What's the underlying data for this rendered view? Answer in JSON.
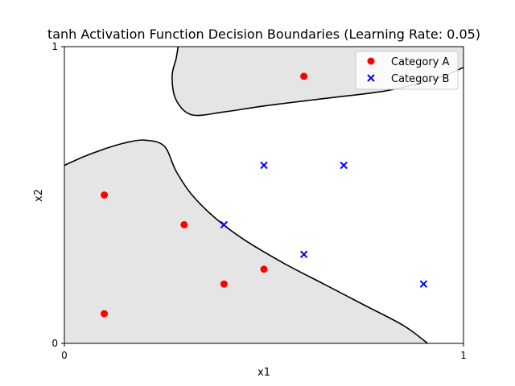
{
  "chart_data": {
    "type": "scatter",
    "title": "tanh Activation Function Decision Boundaries (Learning Rate: 0.05)",
    "xlabel": "x1",
    "ylabel": "x2",
    "xlim": [
      0,
      1
    ],
    "ylim": [
      0,
      1
    ],
    "xticks": [
      "0",
      "1"
    ],
    "yticks": [
      "0",
      "1"
    ],
    "legend_position": "top-right",
    "grid": false,
    "series": [
      {
        "name": "Category A",
        "marker": "circle",
        "color": "#ff0000",
        "points": [
          [
            0.1,
            0.1
          ],
          [
            0.1,
            0.5
          ],
          [
            0.3,
            0.4
          ],
          [
            0.4,
            0.2
          ],
          [
            0.5,
            0.25
          ],
          [
            0.6,
            0.9
          ]
        ]
      },
      {
        "name": "Category B",
        "marker": "x",
        "color": "#0000ff",
        "points": [
          [
            0.4,
            0.4
          ],
          [
            0.5,
            0.6
          ],
          [
            0.6,
            0.3
          ],
          [
            0.7,
            0.6
          ],
          [
            0.9,
            0.2
          ]
        ]
      }
    ],
    "boundary_fill": "#e5e5e5",
    "boundary_regions": [
      {
        "name": "lower-left region",
        "points": [
          [
            0,
            0.6
          ],
          [
            0.05,
            0.63
          ],
          [
            0.1,
            0.655
          ],
          [
            0.15,
            0.675
          ],
          [
            0.2,
            0.685
          ],
          [
            0.25,
            0.665
          ],
          [
            0.28,
            0.58
          ],
          [
            0.32,
            0.5
          ],
          [
            0.38,
            0.42
          ],
          [
            0.45,
            0.35
          ],
          [
            0.55,
            0.27
          ],
          [
            0.65,
            0.2
          ],
          [
            0.75,
            0.13
          ],
          [
            0.85,
            0.06
          ],
          [
            0.91,
            0.0
          ],
          [
            0,
            0.0
          ]
        ]
      },
      {
        "name": "upper region",
        "points": [
          [
            0.285,
            1.0
          ],
          [
            0.28,
            0.96
          ],
          [
            0.27,
            0.9
          ],
          [
            0.28,
            0.82
          ],
          [
            0.32,
            0.77
          ],
          [
            0.4,
            0.78
          ],
          [
            0.5,
            0.8
          ],
          [
            0.65,
            0.825
          ],
          [
            0.8,
            0.85
          ],
          [
            0.9,
            0.88
          ],
          [
            0.95,
            0.9
          ],
          [
            1.0,
            0.93
          ],
          [
            1.0,
            1.0
          ]
        ]
      }
    ]
  }
}
